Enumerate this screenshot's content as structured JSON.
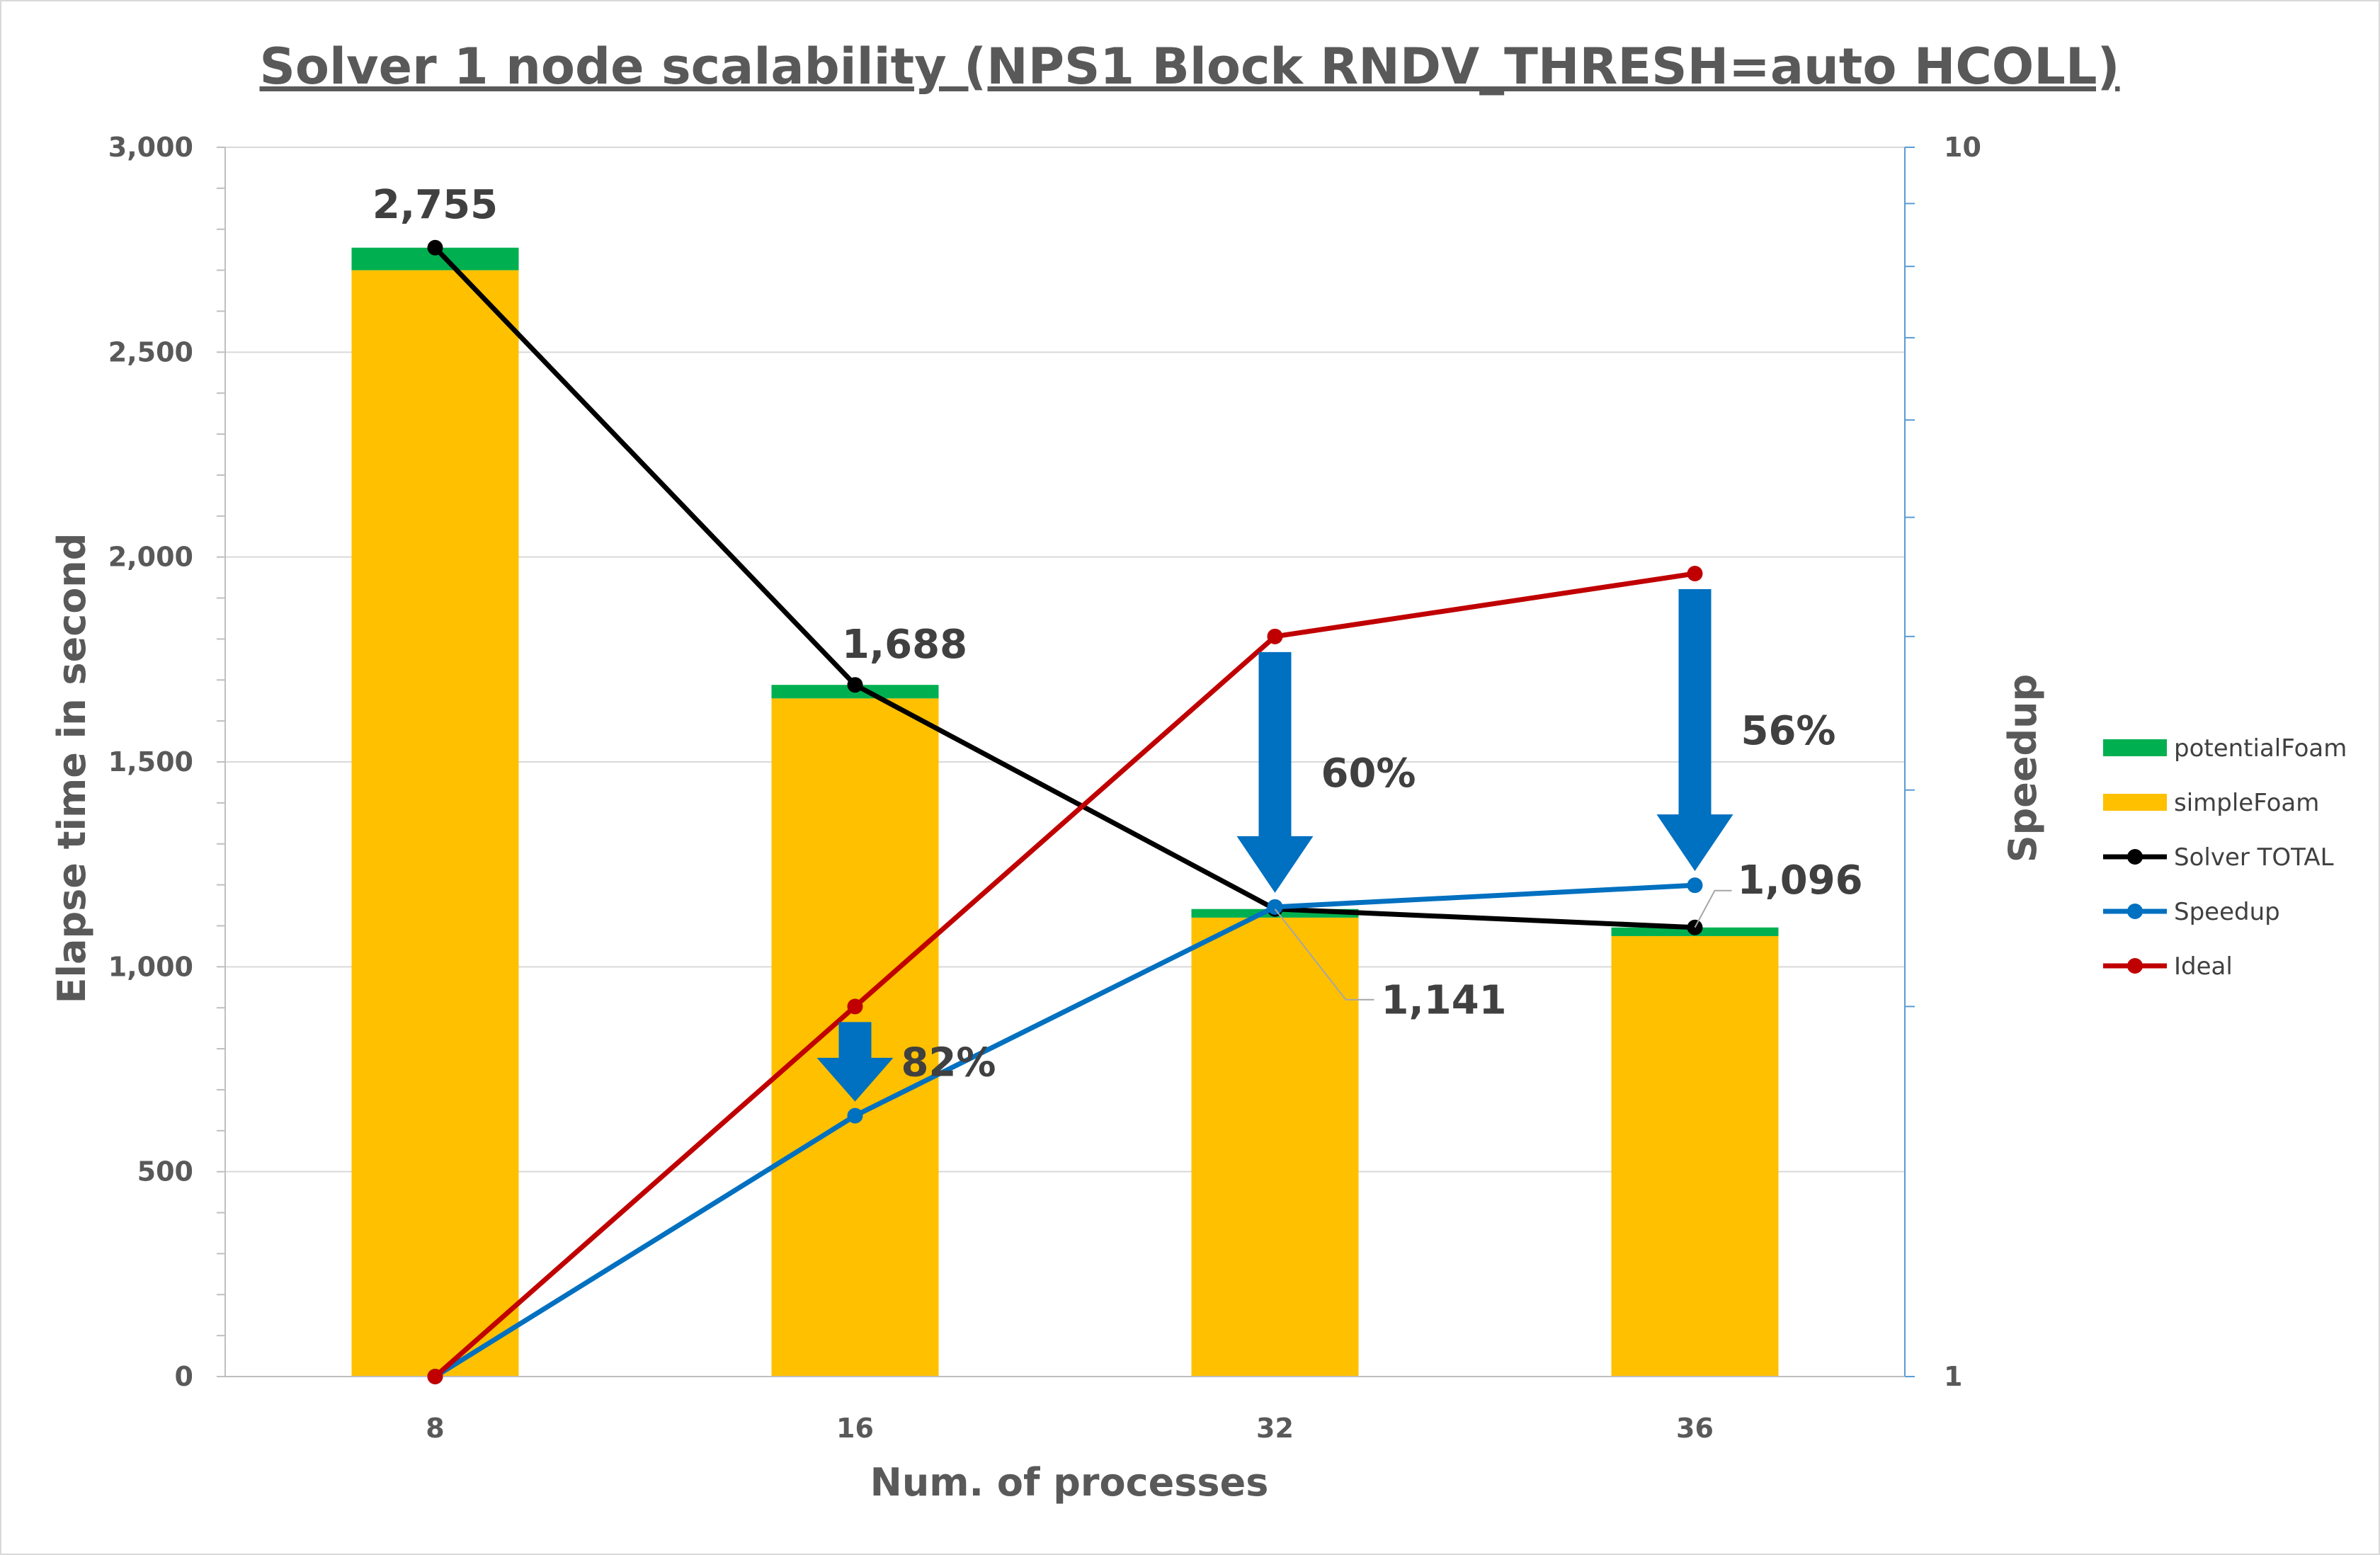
{
  "chart_data": {
    "type": "bar",
    "title": "Solver 1 node scalability (NPS1 Block RNDV_THRESH=auto HCOLL)",
    "xlabel": "Num. of processes",
    "ylabel": "Elapse time in second",
    "y2label": "Speedup",
    "categories": [
      "8",
      "16",
      "32",
      "36"
    ],
    "ylim": [
      0,
      3000
    ],
    "y_ticks": [
      "0",
      "500",
      "1,000",
      "1,500",
      "2,000",
      "2,500",
      "3,000"
    ],
    "y_tick_values": [
      0,
      500,
      1000,
      1500,
      2000,
      2500,
      3000
    ],
    "y2_scale": "log",
    "y2lim": [
      1,
      10
    ],
    "y2_ticks": [
      "1",
      "10"
    ],
    "y2_tick_values": [
      1,
      10
    ],
    "grid": true,
    "legend_position": "right",
    "stacked_bars": [
      {
        "name": "simpleFoam",
        "color": "#FFC000",
        "values": [
          2700,
          1655,
          1120,
          1075
        ]
      },
      {
        "name": "potentialFoam",
        "color": "#00B050",
        "values": [
          55,
          33,
          21,
          21
        ]
      }
    ],
    "lines": [
      {
        "name": "Solver TOTAL",
        "axis": "left",
        "color": "#000000",
        "values": [
          2755,
          1688,
          1141,
          1096
        ]
      },
      {
        "name": "Speedup",
        "axis": "right",
        "color": "#0070C0",
        "values": [
          1.0,
          1.63,
          2.41,
          2.51
        ]
      },
      {
        "name": "Ideal",
        "axis": "right",
        "color": "#C00000",
        "values": [
          1.0,
          2.0,
          4.0,
          4.5
        ]
      }
    ],
    "legend": [
      {
        "name": "potentialFoam",
        "kind": "bar",
        "color": "#00B050"
      },
      {
        "name": "simpleFoam",
        "kind": "bar",
        "color": "#FFC000"
      },
      {
        "name": "Solver TOTAL",
        "kind": "line",
        "color": "#000000"
      },
      {
        "name": "Speedup",
        "kind": "line",
        "color": "#0070C0"
      },
      {
        "name": "Ideal",
        "kind": "line",
        "color": "#C00000"
      }
    ],
    "data_labels": [
      {
        "text": "2,755",
        "series": "Solver TOTAL",
        "category": "8"
      },
      {
        "text": "1,688",
        "series": "Solver TOTAL",
        "category": "16"
      },
      {
        "text": "1,141",
        "series": "Solver TOTAL",
        "category": "32"
      },
      {
        "text": "1,096",
        "series": "Solver TOTAL",
        "category": "36"
      }
    ],
    "annotations": [
      {
        "text": "82%",
        "category": "16",
        "arrow_color": "#0070C0"
      },
      {
        "text": "60%",
        "category": "32",
        "arrow_color": "#0070C0"
      },
      {
        "text": "56%",
        "category": "36",
        "arrow_color": "#0070C0"
      }
    ]
  }
}
